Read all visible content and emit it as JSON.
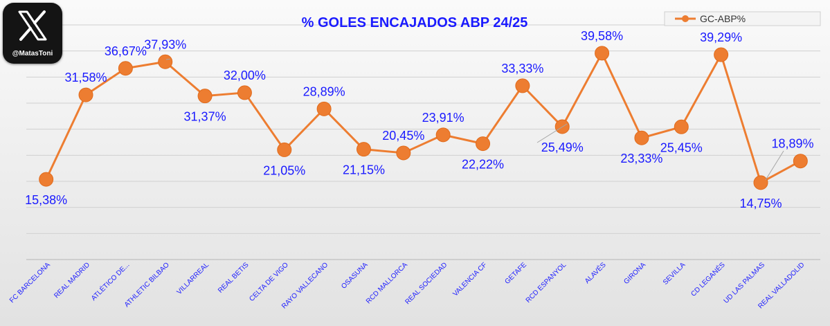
{
  "watermark": {
    "icon": "x-logo-icon",
    "handle": "@MatasToni"
  },
  "chart_data": {
    "type": "line",
    "title": "% GOLES ENCAJADOS ABP 24/25",
    "categories": [
      "FC BARCELONA",
      "REAL MADRID",
      "ATLÉTICO DE...",
      "ATHLETIC BILBAO",
      "VILLARREAL",
      "REAL BETIS",
      "CELTA DE VIGO",
      "RAYO VALLECANO",
      "OSASUNA",
      "RCD MALLORCA",
      "REAL SOCIEDAD",
      "VALENCIA CF",
      "GETAFE",
      "RCD ESPANYOL",
      "ALAVÉS",
      "GIRONA",
      "SEVILLA",
      "CD LEGANÉS",
      "UD LAS PALMAS",
      "REAL VALLADOLID"
    ],
    "series": [
      {
        "name": "GC-ABP%",
        "color": "#ed7d31",
        "values": [
          15.38,
          31.58,
          36.67,
          37.93,
          31.37,
          32.0,
          21.05,
          28.89,
          21.15,
          20.45,
          23.91,
          22.22,
          33.33,
          25.49,
          39.58,
          23.33,
          25.45,
          39.29,
          14.75,
          18.89
        ],
        "labels": [
          "15,38%",
          "31,58%",
          "36,67%",
          "37,93%",
          "31,37%",
          "32,00%",
          "21,05%",
          "28,89%",
          "21,15%",
          "20,45%",
          "23,91%",
          "22,22%",
          "33,33%",
          "25,49%",
          "39,58%",
          "23,33%",
          "25,45%",
          "39,29%",
          "14,75%",
          "18,89%"
        ],
        "label_position": [
          "below",
          "above",
          "above",
          "above",
          "below",
          "above",
          "below",
          "above",
          "below",
          "above",
          "above",
          "below",
          "above",
          "below",
          "above",
          "below",
          "below",
          "above",
          "below",
          "above"
        ]
      }
    ],
    "ylim": [
      0,
      45
    ],
    "grid": true,
    "legend": "top-right",
    "label_color": "#1a1aff",
    "title_color": "#1a1aff",
    "xlabel": "",
    "ylabel": ""
  }
}
